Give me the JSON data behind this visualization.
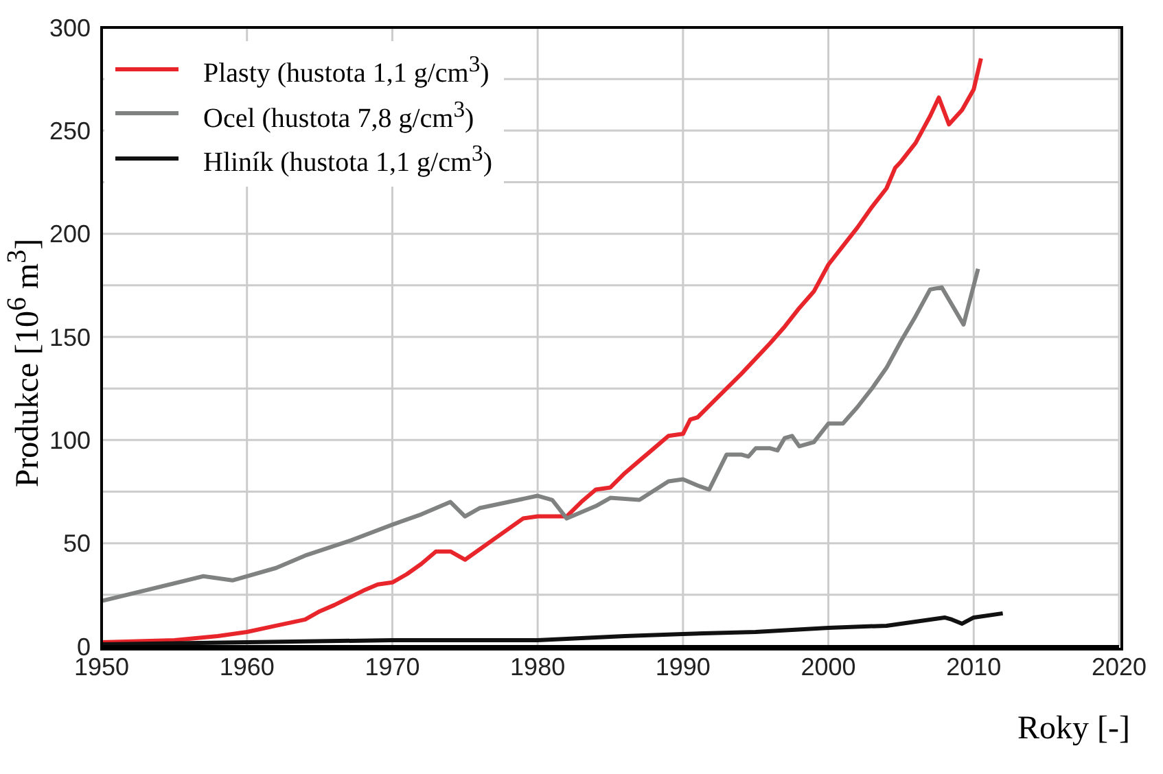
{
  "chart_data": {
    "type": "line",
    "xlabel": "Roky [-]",
    "ylabel": "Produkce [10$^{6}$ m$^{3}$]",
    "xlim": [
      1950,
      2020
    ],
    "xticks": [
      1950,
      1960,
      1970,
      1980,
      1990,
      2000,
      2010,
      2020
    ],
    "ylim": [
      0,
      300
    ],
    "yticks": [
      0,
      {
        "value": 25,
        "label": null
      },
      50,
      {
        "value": 75,
        "label": null
      },
      100,
      {
        "value": 125,
        "label": null
      },
      150,
      {
        "value": 175,
        "label": null
      },
      200,
      {
        "value": 225,
        "label": null
      },
      250,
      {
        "value": 275,
        "label": null
      },
      300
    ],
    "grid": true,
    "legend": "top left",
    "marker": "none",
    "line_style": "solid",
    "series": [
      {
        "name": "Plasty (hustota 1,1 g/cm$^{3}$)",
        "color": "#e8252a",
        "x": [
          1950,
          1955,
          1958,
          1960,
          1962,
          1964,
          1965,
          1966,
          1968,
          1969,
          1970,
          1971,
          1972,
          1973,
          1974,
          1975,
          1976,
          1977,
          1978,
          1979,
          1980,
          1981,
          1982,
          1983,
          1984,
          1985,
          1986,
          1987,
          1988,
          1989,
          1990,
          1990.5,
          1991,
          1992,
          1994,
          1996,
          1997,
          1998,
          1999,
          2000,
          2001,
          2002,
          2003,
          2004,
          2004.6,
          2005,
          2006,
          2007,
          2007.6,
          2008.3,
          2009.2,
          2010,
          2010.5
        ],
        "values": [
          2,
          3,
          5,
          7,
          10,
          13,
          17,
          20,
          27,
          30,
          31,
          35,
          40,
          46,
          46,
          42,
          47,
          52,
          57,
          62,
          63,
          63,
          63,
          70,
          76,
          77,
          84,
          90,
          96,
          102,
          103,
          110,
          111,
          118,
          132,
          147,
          155,
          164,
          172,
          185,
          194,
          203,
          213,
          222,
          232,
          235,
          244,
          257,
          266,
          253,
          260,
          270,
          285
        ]
      },
      {
        "name": "Ocel (hustota 7,8 g/cm$^{3}$)",
        "color": "#808282",
        "x": [
          1950,
          1957,
          1959,
          1962,
          1964,
          1967,
          1970,
          1972,
          1974,
          1975,
          1976,
          1980,
          1981,
          1982,
          1984,
          1985,
          1987,
          1989,
          1990,
          1991,
          1991.8,
          1993,
          1994,
          1994.5,
          1995,
          1996,
          1996.5,
          1997,
          1997.5,
          1998,
          1999,
          2000,
          2001,
          2002,
          2003,
          2004,
          2005,
          2006,
          2007,
          2007.8,
          2009.3,
          2010.3
        ],
        "values": [
          22,
          34,
          32,
          38,
          44,
          51,
          59,
          64,
          70,
          63,
          67,
          73,
          71,
          62,
          68,
          72,
          71,
          80,
          81,
          78,
          76,
          93,
          93,
          92,
          96,
          96,
          95,
          101,
          102,
          97,
          99,
          108,
          108,
          116,
          125,
          135,
          148,
          160,
          173,
          174,
          156,
          183
        ]
      },
      {
        "name": "Hliník (hustota 1,1 g/cm$^{3}$)",
        "color": "#111111",
        "x": [
          1950,
          1960,
          1970,
          1980,
          1983,
          1986,
          1990,
          1995,
          2000,
          2004,
          2007,
          2008,
          2008.5,
          2009.2,
          2010,
          2012
        ],
        "values": [
          1,
          2,
          3,
          3,
          4,
          5,
          6,
          7,
          9,
          10,
          13,
          14,
          13,
          11,
          14,
          16
        ]
      }
    ]
  }
}
